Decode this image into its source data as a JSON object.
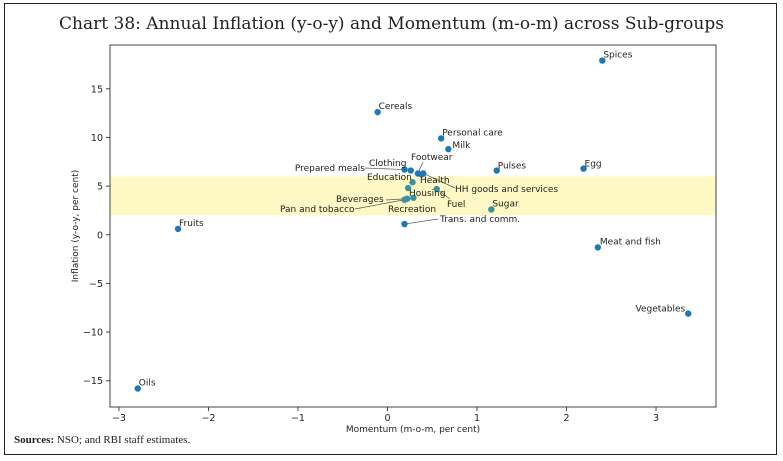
{
  "page": {
    "title": "Chart 38: Annual Inflation (y-o-y) and Momentum (m-o-m) across Sub-groups",
    "sources_label": "Sources:",
    "sources_text": " NSO; and RBI staff estimates."
  },
  "chart_data": {
    "type": "scatter",
    "title": "Chart 38: Annual Inflation (y-o-y) and Momentum (m-o-m) across Sub-groups",
    "xlabel": "Momentum (m-o-m, per cent)",
    "ylabel": "Inflation (y-o-y, per cent)",
    "xlim": [
      -3.1,
      3.67
    ],
    "ylim": [
      -17.7,
      19.5
    ],
    "xticks": [
      -3,
      -2,
      -1,
      0,
      1,
      2,
      3
    ],
    "yticks": [
      -15,
      -10,
      -5,
      0,
      5,
      10,
      15
    ],
    "grid": false,
    "band": {
      "y_from": 2,
      "y_to": 6,
      "color": "#fdf8c4"
    },
    "colors": {
      "point": "#1f77b4",
      "point_in_band": "#3a8fa0"
    },
    "points": [
      {
        "label": "Spices",
        "x": 2.4,
        "y": 17.9
      },
      {
        "label": "Cereals",
        "x": -0.11,
        "y": 12.6
      },
      {
        "label": "Personal care",
        "x": 0.6,
        "y": 9.9
      },
      {
        "label": "Milk",
        "x": 0.68,
        "y": 8.8
      },
      {
        "label": "Pulses",
        "x": 1.22,
        "y": 6.6
      },
      {
        "label": "Egg",
        "x": 2.19,
        "y": 6.8
      },
      {
        "label": "Prepared meals",
        "x": 0.19,
        "y": 6.7
      },
      {
        "label": "Clothing",
        "x": 0.26,
        "y": 6.6
      },
      {
        "label": "Footwear",
        "x": 0.34,
        "y": 6.3
      },
      {
        "label": "Health",
        "x": 0.38,
        "y": 6.2
      },
      {
        "label": "HH goods and services",
        "x": 0.4,
        "y": 6.3
      },
      {
        "label": "Education",
        "x": 0.28,
        "y": 5.4
      },
      {
        "label": "Housing",
        "x": 0.23,
        "y": 4.8
      },
      {
        "label": "Fuel",
        "x": 0.55,
        "y": 4.7
      },
      {
        "label": "Recreation",
        "x": 0.29,
        "y": 3.8
      },
      {
        "label": "Beverages",
        "x": 0.22,
        "y": 3.7
      },
      {
        "label": "Pan and tobacco",
        "x": 0.19,
        "y": 3.6
      },
      {
        "label": "Sugar",
        "x": 1.16,
        "y": 2.6
      },
      {
        "label": "Trans. and comm.",
        "x": 0.19,
        "y": 1.1
      },
      {
        "label": "Fruits",
        "x": -2.34,
        "y": 0.6
      },
      {
        "label": "Meat and fish",
        "x": 2.35,
        "y": -1.3
      },
      {
        "label": "Vegetables",
        "x": 3.36,
        "y": -8.1
      },
      {
        "label": "Oils",
        "x": -2.79,
        "y": -15.8
      }
    ]
  }
}
